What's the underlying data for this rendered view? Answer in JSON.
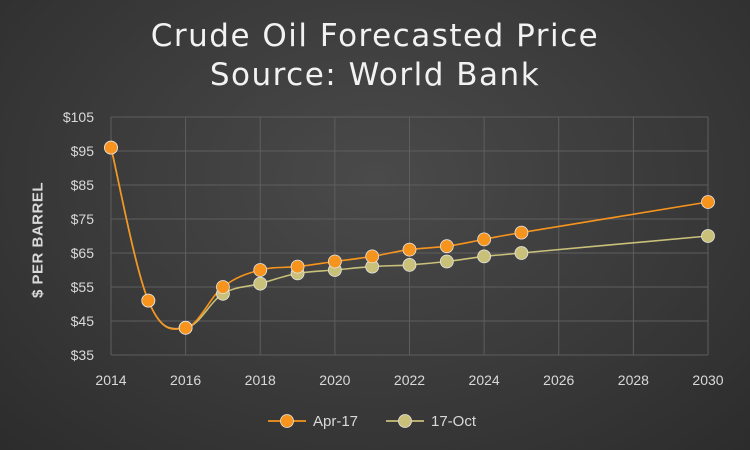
{
  "chart_data": {
    "type": "line",
    "title": "Crude Oil Forecasted Price",
    "subtitle": "Source: World Bank",
    "xlabel": "",
    "ylabel": "$ PER BARREL",
    "xlim": [
      2014,
      2030
    ],
    "ylim": [
      35,
      105
    ],
    "x_ticks": [
      "2014",
      "2016",
      "2018",
      "2020",
      "2022",
      "2024",
      "2026",
      "2028",
      "2030"
    ],
    "y_ticks": [
      "$35",
      "$45",
      "$55",
      "$65",
      "$75",
      "$85",
      "$95",
      "$105"
    ],
    "grid": true,
    "legend_position": "bottom",
    "series": [
      {
        "name": "Apr-17",
        "color": "#f7941d",
        "x": [
          2014,
          2015,
          2016,
          2017,
          2018,
          2019,
          2020,
          2021,
          2022,
          2023,
          2024,
          2025,
          2030
        ],
        "values": [
          96,
          51,
          43,
          55,
          60,
          61,
          62.5,
          64,
          66,
          67,
          69,
          71,
          80
        ]
      },
      {
        "name": "17-Oct",
        "color": "#c9c07a",
        "x": [
          2014,
          2015,
          2016,
          2017,
          2018,
          2019,
          2020,
          2021,
          2022,
          2023,
          2024,
          2025,
          2030
        ],
        "values": [
          96,
          51,
          43,
          53,
          56,
          59,
          60,
          61,
          61.5,
          62.5,
          64,
          65,
          70
        ]
      }
    ]
  }
}
